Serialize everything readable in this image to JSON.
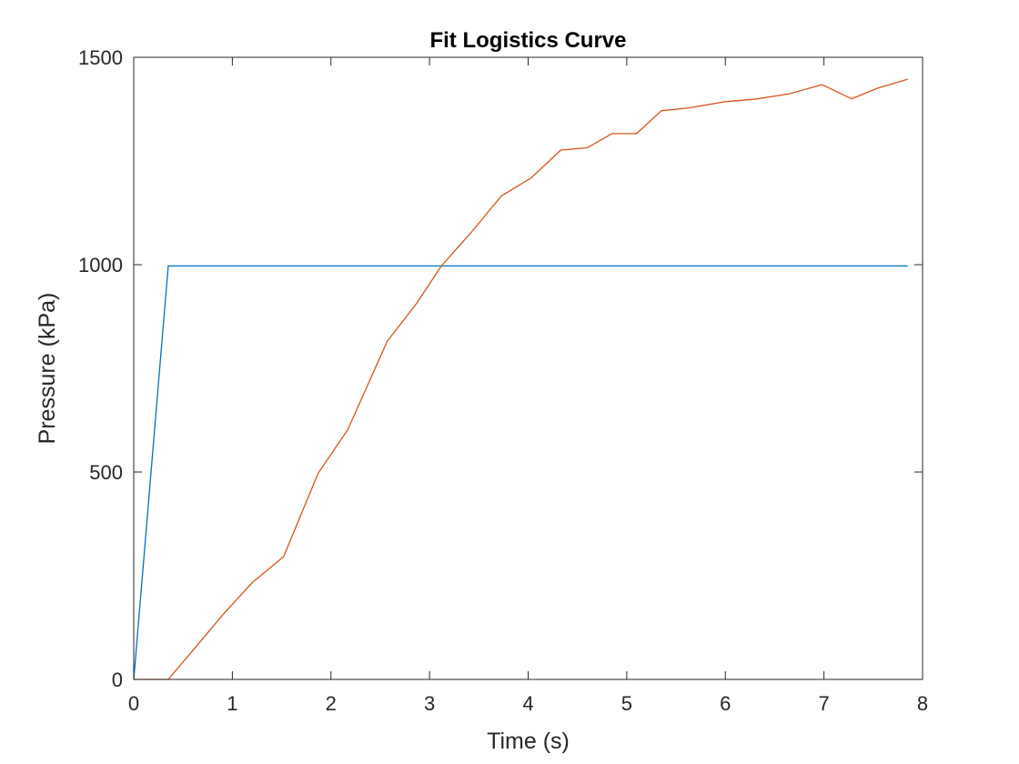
{
  "chart_data": {
    "type": "line",
    "title": "Fit Logistics Curve",
    "xlabel": "Time (s)",
    "ylabel": "Pressure (kPa)",
    "xlim": [
      0,
      8
    ],
    "ylim": [
      0,
      1500
    ],
    "xticks": [
      "0",
      "1",
      "2",
      "3",
      "4",
      "5",
      "6",
      "7",
      "8"
    ],
    "yticks": [
      "0",
      "500",
      "1000",
      "1500"
    ],
    "grid": false,
    "box": true,
    "series": [
      {
        "color": "#0072BD",
        "x": [
          0,
          0.35,
          7.85
        ],
        "y": [
          0,
          997,
          997
        ]
      },
      {
        "color": "#D95319",
        "x": [
          0,
          0.35,
          0.6,
          0.9,
          1.2,
          1.52,
          1.87,
          2.17,
          2.57,
          2.87,
          3.12,
          3.43,
          3.73,
          4.03,
          4.33,
          4.6,
          4.85,
          5.1,
          5.35,
          5.63,
          6.0,
          6.3,
          6.65,
          6.98,
          7.28,
          7.55,
          7.85
        ],
        "y": [
          0,
          0,
          70,
          155,
          233,
          296,
          497,
          602,
          815,
          907,
          997,
          1080,
          1166,
          1209,
          1276,
          1282,
          1316,
          1316,
          1371,
          1378,
          1393,
          1399,
          1412,
          1434,
          1400,
          1426,
          1447
        ]
      }
    ]
  }
}
